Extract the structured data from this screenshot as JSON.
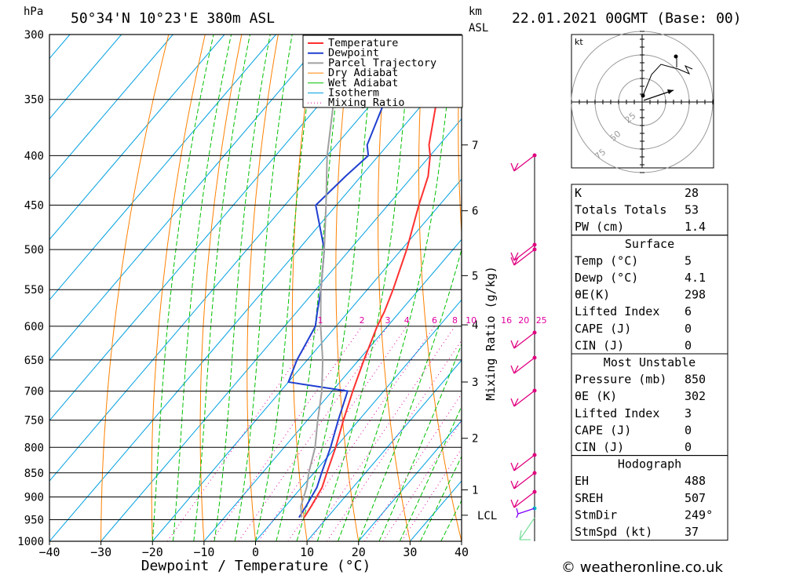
{
  "header": {
    "pressure_unit": "hPa",
    "location": "50°34'N 10°23'E 380m ASL",
    "height_unit": "km",
    "height_unit2": "ASL",
    "datetime": "22.01.2021 00GMT (Base: 00)"
  },
  "footer": {
    "credit": "© weatheronline.co.uk"
  },
  "colors": {
    "temperature": "#ff3030",
    "dewpoint": "#2040d0",
    "parcel": "#a0a0a0",
    "dry_adiabat": "#ff8000",
    "wet_adiabat": "#00c000",
    "isotherm": "#00a0e0",
    "mixing_ratio": "#e000a0",
    "wind": "#e00080"
  },
  "chart_data": {
    "type": "line",
    "xlabel": "Dewpoint / Temperature (°C)",
    "ylabel": "",
    "x_ticks": [
      "−40",
      "−30",
      "−20",
      "−10",
      "0",
      "10",
      "20",
      "30",
      "40"
    ],
    "y_ticks": [
      "300",
      "350",
      "400",
      "450",
      "500",
      "550",
      "600",
      "650",
      "700",
      "750",
      "800",
      "850",
      "900",
      "950",
      "1000"
    ],
    "y_scale": "log-pressure",
    "xlim": [
      -40,
      40
    ],
    "ylim": [
      1000,
      300
    ],
    "legend": [
      "Temperature",
      "Dewpoint",
      "Parcel Trajectory",
      "Dry Adiabat",
      "Wet Adiabat",
      "Isotherm",
      "Mixing Ratio"
    ],
    "legend_position": "top-right",
    "height_axis": {
      "label": "km ASL",
      "ticks": [
        {
          "label": "7",
          "p": 390
        },
        {
          "label": "6",
          "p": 456
        },
        {
          "label": "5",
          "p": 532
        },
        {
          "label": "4",
          "p": 598
        },
        {
          "label": "3",
          "p": 685
        },
        {
          "label": "2",
          "p": 783
        },
        {
          "label": "1",
          "p": 885
        },
        {
          "label": "LCL",
          "p": 940
        }
      ]
    },
    "mixing_ratio_axis_label": "Mixing Ratio (g/kg)",
    "mixing_ratio_labels": [
      "1",
      "2",
      "3",
      "4",
      "6",
      "8",
      "10",
      "16",
      "20",
      "25"
    ],
    "series": [
      {
        "name": "Temperature",
        "points": [
          [
            5.5,
            945
          ],
          [
            5,
            920
          ],
          [
            4,
            880
          ],
          [
            2.5,
            850
          ],
          [
            0,
            800
          ],
          [
            -3,
            750
          ],
          [
            -6,
            700
          ],
          [
            -9,
            650
          ],
          [
            -12,
            600
          ],
          [
            -13,
            580
          ],
          [
            -15,
            550
          ],
          [
            -19,
            500
          ],
          [
            -24,
            450
          ],
          [
            -27,
            420
          ],
          [
            -30,
            400
          ],
          [
            -32,
            390
          ],
          [
            -38,
            350
          ],
          [
            -45,
            300
          ]
        ]
      },
      {
        "name": "Dewpoint",
        "points": [
          [
            4.5,
            945
          ],
          [
            4,
            920
          ],
          [
            3,
            880
          ],
          [
            1.5,
            850
          ],
          [
            -1,
            800
          ],
          [
            -4,
            750
          ],
          [
            -7,
            700
          ],
          [
            -20,
            685
          ],
          [
            -22,
            650
          ],
          [
            -24,
            600
          ],
          [
            -26,
            580
          ],
          [
            -29,
            550
          ],
          [
            -35,
            500
          ],
          [
            -44,
            450
          ],
          [
            -43,
            420
          ],
          [
            -42,
            400
          ],
          [
            -44,
            390
          ],
          [
            -48,
            350
          ],
          [
            -54,
            300
          ]
        ]
      },
      {
        "name": "Parcel Trajectory",
        "points": [
          [
            5,
            945
          ],
          [
            3,
            920
          ],
          [
            1,
            880
          ],
          [
            -1,
            850
          ],
          [
            -4,
            800
          ],
          [
            -8,
            750
          ],
          [
            -12,
            700
          ],
          [
            -17,
            650
          ],
          [
            -23,
            600
          ],
          [
            -29,
            550
          ],
          [
            -35,
            500
          ],
          [
            -42,
            450
          ],
          [
            -50,
            400
          ],
          [
            -58,
            350
          ],
          [
            -66,
            300
          ]
        ]
      }
    ]
  },
  "indices": {
    "basic": [
      {
        "label": "K",
        "value": "28"
      },
      {
        "label": "Totals Totals",
        "value": "53"
      },
      {
        "label": "PW (cm)",
        "value": "1.4"
      }
    ],
    "surface": {
      "title": "Surface",
      "rows": [
        {
          "label": "Temp (°C)",
          "value": "5"
        },
        {
          "label": "Dewp (°C)",
          "value": "4.1"
        },
        {
          "label": "θE(K)",
          "value": "298"
        },
        {
          "label": "Lifted Index",
          "value": "6"
        },
        {
          "label": "CAPE (J)",
          "value": "0"
        },
        {
          "label": "CIN (J)",
          "value": "0"
        }
      ]
    },
    "most_unstable": {
      "title": "Most Unstable",
      "rows": [
        {
          "label": "Pressure (mb)",
          "value": "850"
        },
        {
          "label": "θE (K)",
          "value": "302"
        },
        {
          "label": "Lifted Index",
          "value": "3"
        },
        {
          "label": "CAPE (J)",
          "value": "0"
        },
        {
          "label": "CIN (J)",
          "value": "0"
        }
      ]
    },
    "hodograph": {
      "title": "Hodograph",
      "rows": [
        {
          "label": "EH",
          "value": "488"
        },
        {
          "label": "SREH",
          "value": "507"
        },
        {
          "label": "StmDir",
          "value": "249°"
        },
        {
          "label": "StmSpd (kt)",
          "value": "37"
        }
      ]
    }
  },
  "hodograph_plot": {
    "unit": "kt",
    "ring_labels": [
      "25",
      "50",
      "75"
    ]
  }
}
